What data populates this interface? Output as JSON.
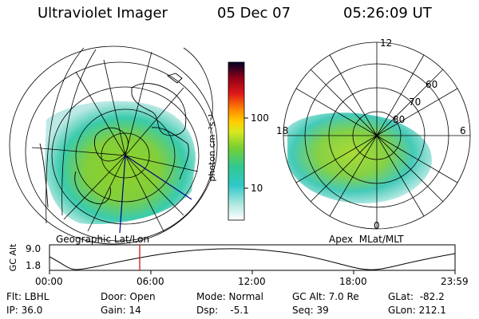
{
  "header": {
    "instrument": "Ultraviolet Imager",
    "date": "05 Dec 07",
    "time": "05:26:09 UT"
  },
  "colorbar": {
    "unit_label": "photon cm⁻²s⁻¹",
    "tick_100": "100",
    "tick_10": "10"
  },
  "geo_panel": {
    "caption": "Geographic Lat/Lon"
  },
  "apex_panel": {
    "caption": "Apex  MLat/MLT",
    "mlt_12": "12",
    "mlt_18": "18",
    "mlt_6": "6",
    "mlt_0": "0",
    "lat_60": "60",
    "lat_70": "70",
    "lat_80": "80"
  },
  "altitude_plot": {
    "ylabel": "GC Alt",
    "y_tick_hi": "9.0",
    "y_tick_lo": "1.8",
    "x_ticks": [
      "00:00",
      "06:00",
      "12:00",
      "18:00",
      "23:59"
    ],
    "cursor_color": "#cc0000"
  },
  "info": {
    "filter": "Flt: LBHL",
    "ip": "IP: 36.0",
    "door": "Door: Open",
    "gain": "Gain: 14",
    "mode": "Mode: Normal",
    "dsp": "Dsp:    -5.1",
    "gc_alt": "GC Alt: 7.0 Re",
    "seq": "Seq: 39",
    "glat": "GLat:  -82.2",
    "glon": "GLon: 212.1"
  }
}
